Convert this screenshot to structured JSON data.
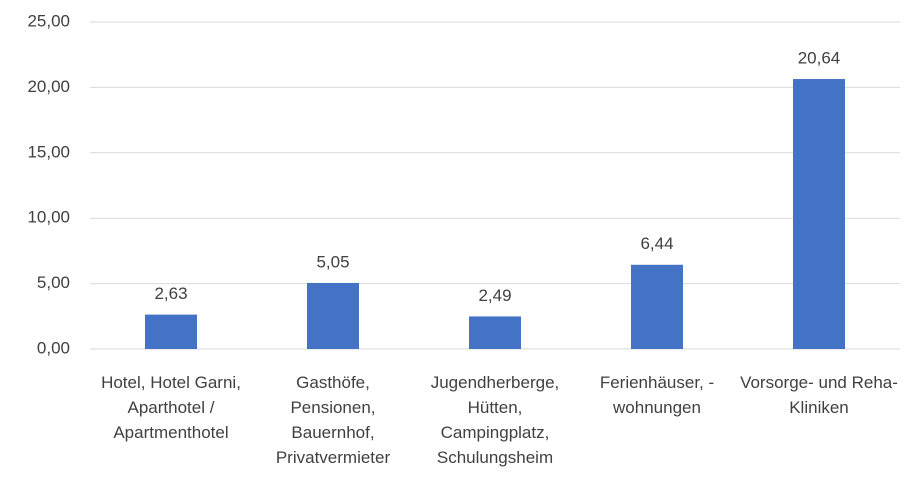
{
  "chart_data": {
    "type": "bar",
    "categories": [
      "Hotel, Hotel Garni, Aparthotel / Apartmenthotel",
      "Gasthöfe, Pensionen, Bauernhof, Privatvermieter",
      "Jugendherberge, Hütten, Campingplatz, Schulungsheim",
      "Ferienhäuser, - wohnungen",
      "Vorsorge- und Reha-Kliniken"
    ],
    "values": [
      2.63,
      5.05,
      2.49,
      6.44,
      20.64
    ],
    "value_labels": [
      "2,63",
      "5,05",
      "2,49",
      "6,44",
      "20,64"
    ],
    "color": "#4472c4",
    "ylim": [
      0,
      25
    ],
    "yticks": [
      {
        "value": 0,
        "label": "0,00"
      },
      {
        "value": 5,
        "label": "5,00"
      },
      {
        "value": 10,
        "label": "10,00"
      },
      {
        "value": 15,
        "label": "15,00"
      },
      {
        "value": 20,
        "label": "20,00"
      },
      {
        "value": 25,
        "label": "25,00"
      }
    ],
    "grid": true
  }
}
